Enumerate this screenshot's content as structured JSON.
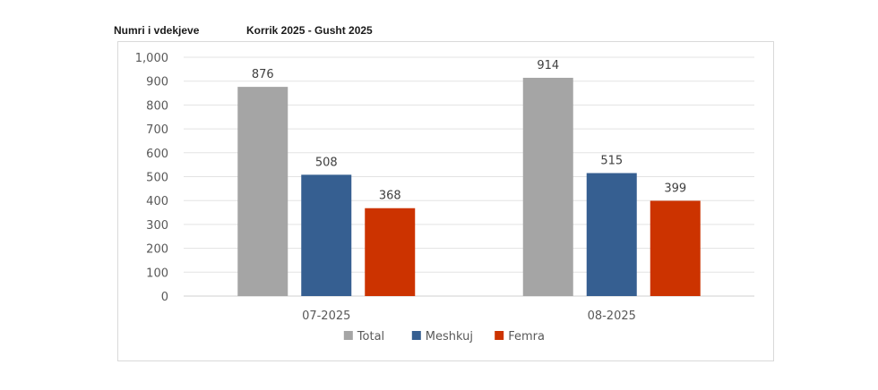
{
  "header": {
    "left": "Numri i vdekjeve",
    "right": "Korrik 2025 - Gusht  2025"
  },
  "chart_data": {
    "type": "bar",
    "title": "Korrik 2025 - Gusht  2025",
    "ylabel": "Numri i vdekjeve",
    "xlabel": "",
    "categories": [
      "07-2025",
      "08-2025"
    ],
    "series": [
      {
        "name": "Total",
        "color": "#a5a5a5",
        "values": [
          876,
          914
        ],
        "labels": [
          "876",
          "914"
        ]
      },
      {
        "name": "Meshkuj",
        "color": "#365f91",
        "values": [
          508,
          515
        ],
        "labels": [
          "508",
          "515"
        ]
      },
      {
        "name": "Femra",
        "color": "#cc3300",
        "values": [
          368,
          399
        ],
        "labels": [
          "368",
          "399"
        ]
      }
    ],
    "ylim": [
      0,
      1000
    ],
    "yticks": [
      0,
      100,
      200,
      300,
      400,
      500,
      600,
      700,
      800,
      900,
      1000
    ],
    "ytick_labels": [
      "0",
      "100",
      "200",
      "300",
      "400",
      "500",
      "600",
      "700",
      "800",
      "900",
      "1,000"
    ],
    "grid": true,
    "legend_position": "bottom"
  }
}
